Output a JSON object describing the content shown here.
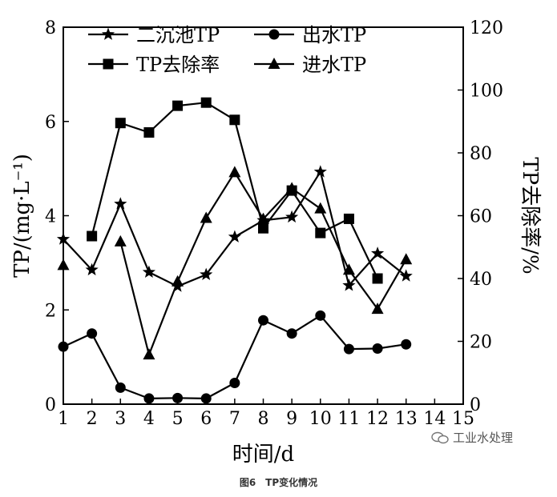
{
  "chart_data": {
    "type": "line",
    "title": "",
    "xlabel": "时间/d",
    "ylabel_left": "TP/(mg·L⁻¹)",
    "ylabel_right": "TP去除率/%",
    "x_ticks": [
      1,
      2,
      3,
      4,
      5,
      6,
      7,
      8,
      9,
      10,
      11,
      12,
      13,
      14,
      15
    ],
    "y_left_ticks": [
      0,
      2,
      4,
      6,
      8
    ],
    "y_right_ticks": [
      0,
      20,
      40,
      60,
      80,
      100,
      120
    ],
    "xlim": [
      1,
      15
    ],
    "ylim_left": [
      0,
      8
    ],
    "ylim_right": [
      0,
      120
    ],
    "grid": false,
    "legend_position": "top",
    "series": [
      {
        "name": "二沉池TP",
        "marker": "star",
        "axis": "left",
        "x": [
          1,
          2,
          3,
          4,
          5,
          6,
          7,
          8,
          9,
          10,
          11,
          12,
          13
        ],
        "values": [
          3.5,
          2.85,
          4.25,
          2.8,
          2.5,
          2.75,
          3.55,
          3.9,
          3.97,
          4.93,
          2.52,
          3.2,
          2.72
        ]
      },
      {
        "name": "出水TP",
        "marker": "circle",
        "axis": "left",
        "x": [
          1,
          2,
          3,
          4,
          5,
          6,
          7,
          8,
          9,
          10,
          11,
          12,
          13
        ],
        "values": [
          1.22,
          1.5,
          0.35,
          0.12,
          0.13,
          0.12,
          0.45,
          1.78,
          1.5,
          1.88,
          1.17,
          1.18,
          1.27
        ]
      },
      {
        "name": "TP去除率",
        "marker": "square",
        "axis": "right",
        "x": [
          2,
          3,
          4,
          5,
          6,
          7,
          8,
          9,
          10,
          11,
          12
        ],
        "values": [
          53.5,
          89.5,
          86.5,
          95,
          96,
          90.5,
          56,
          68,
          54.5,
          59,
          40
        ]
      },
      {
        "name": "进水TP",
        "marker": "triangle",
        "axis": "left",
        "x": [
          1,
          2,
          3,
          4,
          5,
          6,
          7,
          8,
          9,
          10,
          11,
          12,
          13
        ],
        "values": [
          2.95,
          null,
          3.45,
          1.05,
          2.6,
          3.95,
          4.92,
          3.93,
          4.58,
          4.15,
          2.85,
          2.02,
          3.07
        ]
      }
    ]
  },
  "caption": "图6　TP变化情况",
  "watermark": "工业水处理",
  "colors": {
    "line": "#000000",
    "background": "#ffffff"
  }
}
